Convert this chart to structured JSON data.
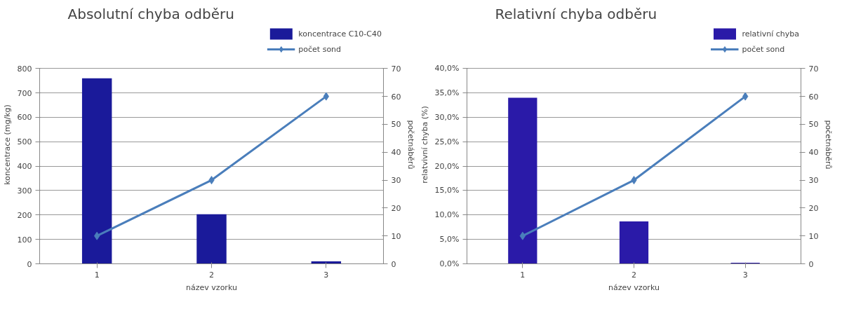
{
  "chart_data": [
    {
      "type": "bar",
      "title": "Absolutní chyba odběru",
      "xlabel": "název vzorku",
      "ylabel": "koncentrace (mg/kg)",
      "y2label": "početnáběrů",
      "categories": [
        "1",
        "2",
        "3"
      ],
      "series": [
        {
          "name": "koncentrace C10-C40",
          "color": "#1a1a9a",
          "values": [
            760,
            203,
            10
          ]
        },
        {
          "name": "počet sond",
          "type": "line",
          "axis": "y2",
          "color": "#4a7ebb",
          "values": [
            10,
            30,
            60
          ]
        }
      ],
      "ylim": [
        0,
        800
      ],
      "yticks": [
        0,
        100,
        200,
        300,
        400,
        500,
        600,
        700,
        800
      ],
      "y2lim": [
        0,
        70
      ],
      "y2ticks": [
        0,
        10,
        20,
        30,
        40,
        50,
        60,
        70
      ],
      "grid": "y",
      "legend": "top right",
      "marker": "diamond",
      "line_style": "solid"
    },
    {
      "type": "bar",
      "title": "Relativní chyba odběru",
      "xlabel": "název vzorku",
      "ylabel": "relatvivní chyba (%)",
      "y2label": "početnáběrů",
      "categories": [
        "1",
        "2",
        "3"
      ],
      "series": [
        {
          "name": "relativní chyba",
          "color": "#2a1aa8",
          "values": [
            34.0,
            8.7,
            0.2
          ]
        },
        {
          "name": "počet sond",
          "type": "line",
          "axis": "y2",
          "color": "#4a7ebb",
          "values": [
            10,
            30,
            60
          ]
        }
      ],
      "ylim": [
        0,
        40
      ],
      "yticks": [
        {
          "value": 0,
          "label": "0,0%"
        },
        {
          "value": 5,
          "label": "5,0%"
        },
        {
          "value": 10,
          "label": "10,0%"
        },
        {
          "value": 15,
          "label": "15,0%"
        },
        {
          "value": 20,
          "label": "20,0%"
        },
        {
          "value": 25,
          "label": "25,0%"
        },
        {
          "value": 30,
          "label": "30,0%"
        },
        {
          "value": 35,
          "label": "35,0%"
        },
        {
          "value": 40,
          "label": "40,0%"
        }
      ],
      "y2lim": [
        0,
        70
      ],
      "y2ticks": [
        0,
        10,
        20,
        30,
        40,
        50,
        60,
        70
      ],
      "grid": "y",
      "legend": "top right",
      "marker": "diamond",
      "line_style": "solid"
    }
  ]
}
